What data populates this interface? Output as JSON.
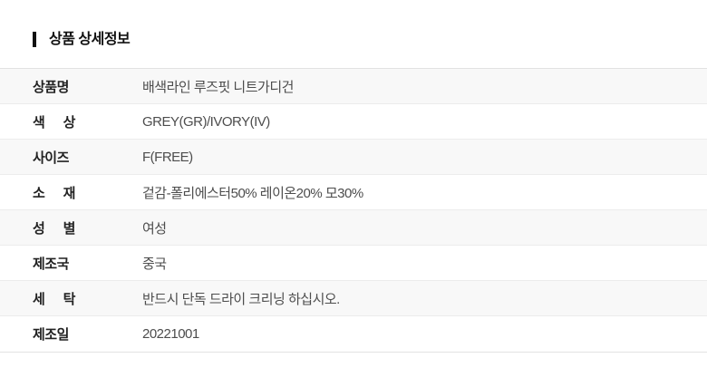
{
  "header": {
    "title": "상품 상세정보"
  },
  "table": {
    "rows": [
      {
        "label": "상품명",
        "value": "배색라인 루즈핏 니트가디건"
      },
      {
        "label": "색 상",
        "value": "GREY(GR)/IVORY(IV)"
      },
      {
        "label": "사이즈",
        "value": "F(FREE)"
      },
      {
        "label": "소 재",
        "value": "겉감-폴리에스터50% 레이온20% 모30%"
      },
      {
        "label": "성 별",
        "value": "여성"
      },
      {
        "label": "제조국",
        "value": "중국"
      },
      {
        "label": "세 탁",
        "value": "반드시 단독 드라이 크리닝 하십시오."
      },
      {
        "label": "제조일",
        "value": "20221001"
      }
    ]
  },
  "colors": {
    "accent_bar": "#111111",
    "row_alt_bg": "#f8f8f8",
    "divider": "#ececec",
    "table_border": "#e2e2e2",
    "label_text": "#222222",
    "value_text": "#4d4d4d"
  }
}
